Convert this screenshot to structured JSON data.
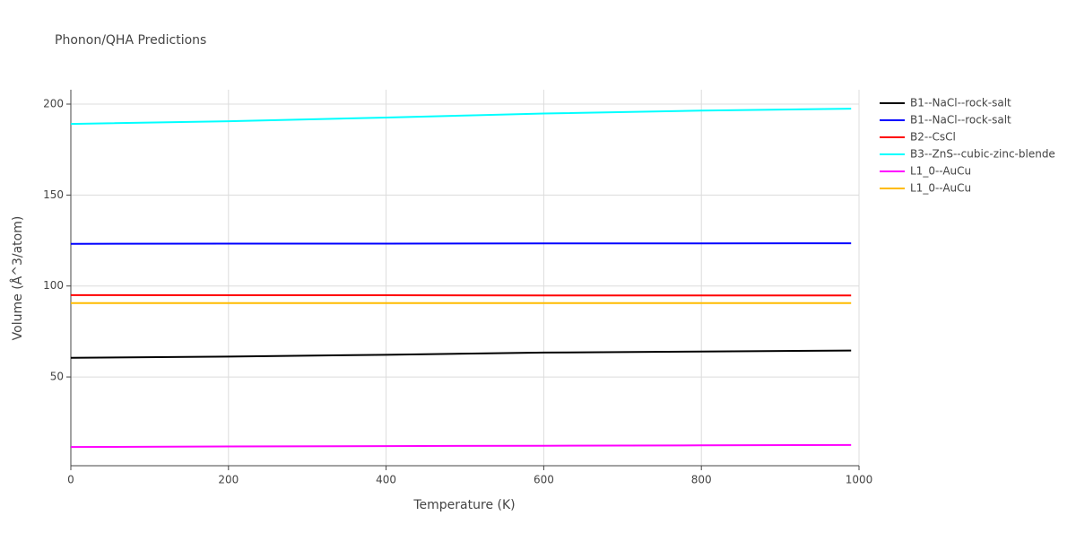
{
  "chart_data": {
    "type": "line",
    "title": "Phonon/QHA Predictions",
    "x_label": "Temperature (K)",
    "y_label": "Volume (Å^3/atom)",
    "x": [
      0,
      200,
      400,
      600,
      800,
      990
    ],
    "series": [
      {
        "name": "B1--NaCl--rock-salt",
        "color": "#000000",
        "values": [
          60.5,
          61.2,
          62.2,
          63.4,
          64,
          64.5
        ]
      },
      {
        "name": "B1--NaCl--rock-salt",
        "color": "#0000ff",
        "values": [
          123.2,
          123.3,
          123.3,
          123.4,
          123.4,
          123.5
        ]
      },
      {
        "name": "B2--CsCl",
        "color": "#ff0000",
        "values": [
          95,
          94.9,
          94.9,
          94.8,
          94.8,
          94.8
        ]
      },
      {
        "name": "B3--ZnS--cubic-zinc-blende",
        "color": "#00ffff",
        "values": [
          189.1,
          190.6,
          192.6,
          194.8,
          196.4,
          197.5
        ]
      },
      {
        "name": "L1_0--AuCu",
        "color": "#ff00ff",
        "values": [
          11.5,
          11.8,
          12,
          12.2,
          12.4,
          12.6
        ]
      },
      {
        "name": "L1_0--AuCu",
        "color": "#ffbb00",
        "values": [
          90.6,
          90.6,
          90.6,
          90.6,
          90.6,
          90.6
        ]
      }
    ],
    "xlim": [
      0,
      1000
    ],
    "xticks": [
      0,
      200,
      400,
      600,
      800,
      1000
    ],
    "ylim": [
      1.2,
      207.9
    ],
    "yticks": [
      50,
      100,
      150,
      200
    ],
    "grid": true
  }
}
